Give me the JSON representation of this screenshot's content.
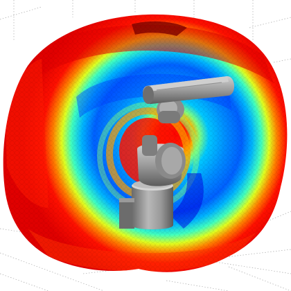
{
  "scene": {
    "description_name": "robot-arm-workspace-reachability-3d",
    "background_color": "#ffffff",
    "grid_color": "#9a9a9a",
    "colormap": [
      "#00008f",
      "#0000ff",
      "#0080ff",
      "#00ffff",
      "#80ff80",
      "#ffff00",
      "#ff8000",
      "#ff0000",
      "#800000"
    ],
    "robot_color": "#8f8f8f",
    "robot_dark": "#5e5e5e",
    "robot_light": "#c4c4c4"
  }
}
